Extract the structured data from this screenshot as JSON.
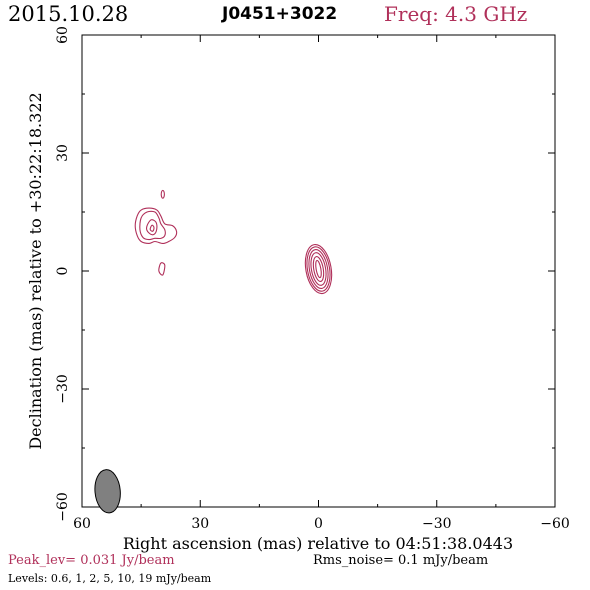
{
  "header": {
    "date": "2015.10.28",
    "source": "J0451+3022",
    "freq": "Freq: 4.3 GHz"
  },
  "footer": {
    "peak": "Peak_lev=  0.031 Jy/beam",
    "rms": "Rms_noise=  0.1 mJy/beam",
    "levels": "Levels: 0.6,   1,   2,   5,  10,  19 mJy/beam"
  },
  "chart_data": {
    "type": "contour",
    "xlabel": "Right ascension (mas) relative to 04:51:38.0443",
    "ylabel": "Declination (mas) relative to +30:22:18.322",
    "xlim": [
      60,
      -60
    ],
    "ylim": [
      -60,
      60
    ],
    "xticks": [
      60,
      30,
      0,
      -30,
      -60
    ],
    "yticks": [
      -60,
      -30,
      0,
      30,
      60
    ],
    "xtick_labels": [
      "60",
      "30",
      "0",
      "−30",
      "−60"
    ],
    "ytick_labels": [
      "−60",
      "−30",
      "0",
      "30",
      "60"
    ],
    "contour_levels_mJy": [
      0.6,
      1,
      2,
      5,
      10,
      19
    ],
    "contour_color": "#b0305a",
    "beam": {
      "x": 53.5,
      "y": -56,
      "major": 5.5,
      "minor": 3.2,
      "pa_deg": 5,
      "color": "#808080"
    },
    "components": [
      {
        "name": "core",
        "x": 0,
        "y": 0.5,
        "contours": [
          {
            "rx": 3.2,
            "ry": 6.3,
            "pa": 10
          },
          {
            "rx": 2.8,
            "ry": 5.7,
            "pa": 10
          },
          {
            "rx": 2.3,
            "ry": 5.0,
            "pa": 10
          },
          {
            "rx": 1.8,
            "ry": 4.2,
            "pa": 10
          },
          {
            "rx": 1.2,
            "ry": 3.2,
            "pa": 10
          },
          {
            "rx": 0.6,
            "ry": 2.2,
            "pa": 10
          }
        ]
      },
      {
        "name": "jet-knot",
        "x": 41.5,
        "y": 11,
        "contours": [
          {
            "points": [
              [
                46,
                14
              ],
              [
                45,
                15.5
              ],
              [
                43,
                16
              ],
              [
                41,
                15.5
              ],
              [
                40,
                14
              ],
              [
                39,
                12
              ],
              [
                37,
                11.5
              ],
              [
                36,
                10
              ],
              [
                36.5,
                8.5
              ],
              [
                38,
                7.5
              ],
              [
                39.5,
                7
              ],
              [
                41.5,
                7.5
              ],
              [
                43,
                7
              ],
              [
                45,
                7.5
              ],
              [
                46,
                9
              ],
              [
                46.5,
                11.5
              ]
            ]
          },
          {
            "points": [
              [
                45,
                13.5
              ],
              [
                43.5,
                15
              ],
              [
                41.5,
                15
              ],
              [
                40.5,
                13.5
              ],
              [
                40,
                12
              ],
              [
                39,
                10.5
              ],
              [
                39,
                9
              ],
              [
                40,
                8.3
              ],
              [
                41.5,
                8.3
              ],
              [
                43,
                8
              ],
              [
                44.5,
                8.5
              ],
              [
                45.3,
                10.5
              ]
            ]
          },
          {
            "points": [
              [
                43.5,
                11.5
              ],
              [
                42.5,
                13
              ],
              [
                41.3,
                12.5
              ],
              [
                41,
                11
              ],
              [
                41.5,
                9.5
              ],
              [
                42.5,
                9.3
              ],
              [
                43.5,
                10.3
              ]
            ]
          },
          {
            "points": [
              [
                42.7,
                10.6
              ],
              [
                42.3,
                11.6
              ],
              [
                41.8,
                11.3
              ],
              [
                41.8,
                10.5
              ],
              [
                42.2,
                10.1
              ]
            ]
          }
        ]
      },
      {
        "name": "faint-blob",
        "x": 39.5,
        "y": 19.5,
        "contours": [
          {
            "rx": 0.4,
            "ry": 1.0,
            "pa": 0
          }
        ]
      },
      {
        "name": "faint-tail",
        "x": 39.5,
        "y": 0.5,
        "contours": [
          {
            "points": [
              [
                40,
                2
              ],
              [
                39,
                1.5
              ],
              [
                39.5,
                -1
              ],
              [
                40.5,
                0
              ]
            ]
          }
        ]
      }
    ]
  }
}
